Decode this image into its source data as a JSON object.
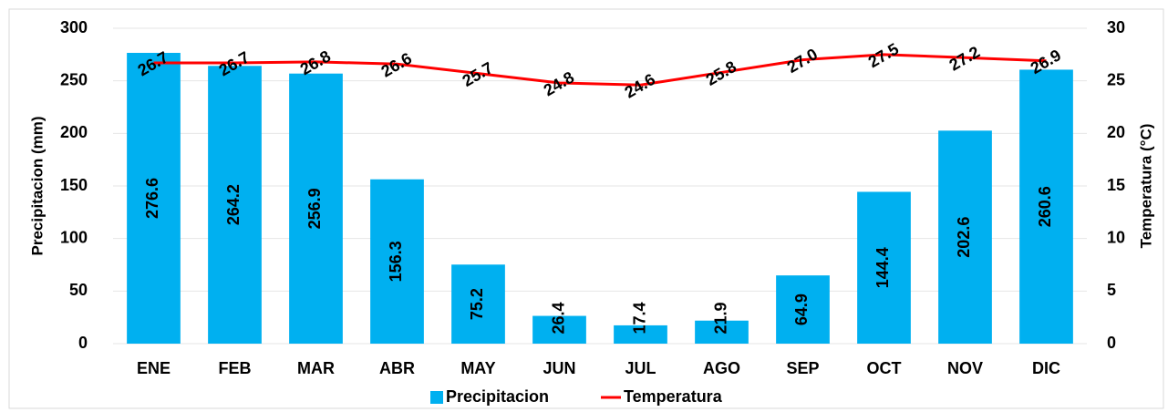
{
  "chart_data": {
    "type": "bar",
    "categories": [
      "ENE",
      "FEB",
      "MAR",
      "ABR",
      "MAY",
      "JUN",
      "JUL",
      "AGO",
      "SEP",
      "OCT",
      "NOV",
      "DIC"
    ],
    "series": [
      {
        "name": "Precipitacion",
        "color": "#00b0f0",
        "values": [
          276.6,
          264.2,
          256.9,
          156.3,
          75.2,
          26.4,
          17.4,
          21.9,
          64.9,
          144.4,
          202.6,
          260.6
        ]
      },
      {
        "name": "Temperatura",
        "type": "line",
        "axis": "y2",
        "color": "#ff0000",
        "values": [
          26.7,
          26.7,
          26.8,
          26.6,
          25.7,
          24.8,
          24.6,
          25.8,
          27.0,
          27.5,
          27.2,
          26.9
        ],
        "value_labels": [
          "26.7",
          "26.7",
          "26.8",
          "26.6",
          "25.7",
          "24.8",
          "24.6",
          "25.8",
          "27.0",
          "27.5",
          "27.2",
          "26.9"
        ]
      }
    ],
    "ylabel": "Precipitacion (mm)",
    "y2label": "Temperatura (°C)",
    "ylim": [
      0,
      300
    ],
    "yticks": [
      0,
      50,
      100,
      150,
      200,
      250,
      300
    ],
    "y2lim": [
      0,
      30
    ],
    "y2ticks": [
      0,
      5,
      10,
      15,
      20,
      25,
      30
    ],
    "grid": true,
    "legend": "bottom"
  }
}
